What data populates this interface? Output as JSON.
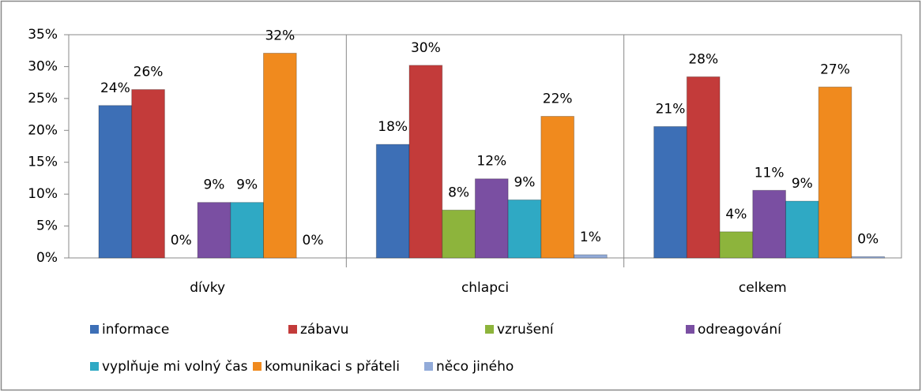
{
  "chart_data": {
    "type": "bar",
    "categories": [
      "dívky",
      "chlapci",
      "celkem"
    ],
    "ylim": [
      0,
      35
    ],
    "yticks": [
      {
        "value": 0,
        "label": "0%"
      },
      {
        "value": 5,
        "label": "5%"
      },
      {
        "value": 10,
        "label": "10%"
      },
      {
        "value": 15,
        "label": "15%"
      },
      {
        "value": 20,
        "label": "20%"
      },
      {
        "value": 25,
        "label": "25%"
      },
      {
        "value": 30,
        "label": "30%"
      },
      {
        "value": 35,
        "label": "35%"
      }
    ],
    "series": [
      {
        "name": "informace",
        "color": "#3d6fb6",
        "values": [
          23.9,
          17.8,
          20.6
        ],
        "value_labels": [
          "24%",
          "18%",
          "21%"
        ]
      },
      {
        "name": "zábavu",
        "color": "#c33b3a",
        "values": [
          26.4,
          30.2,
          28.4
        ],
        "value_labels": [
          "26%",
          "30%",
          "28%"
        ]
      },
      {
        "name": "vzrušení",
        "color": "#8db43c",
        "values": [
          0,
          7.5,
          4.1
        ],
        "value_labels": [
          "0%",
          "8%",
          "4%"
        ]
      },
      {
        "name": "odreagování",
        "color": "#7a4fa2",
        "values": [
          8.7,
          12.4,
          10.6
        ],
        "value_labels": [
          "9%",
          "12%",
          "11%"
        ]
      },
      {
        "name": "vyplňuje mi volný čas",
        "color": "#2fa9c4",
        "values": [
          8.7,
          9.1,
          8.9
        ],
        "value_labels": [
          "9%",
          "9%",
          "9%"
        ]
      },
      {
        "name": "komunikaci s přáteli",
        "color": "#f08a1e",
        "values": [
          32.1,
          22.2,
          26.8
        ],
        "value_labels": [
          "32%",
          "22%",
          "27%"
        ]
      },
      {
        "name": "něco jiného",
        "color": "#92abd9",
        "values": [
          0,
          0.5,
          0.2
        ],
        "value_labels": [
          "0%",
          "1%",
          "0%"
        ]
      }
    ]
  }
}
